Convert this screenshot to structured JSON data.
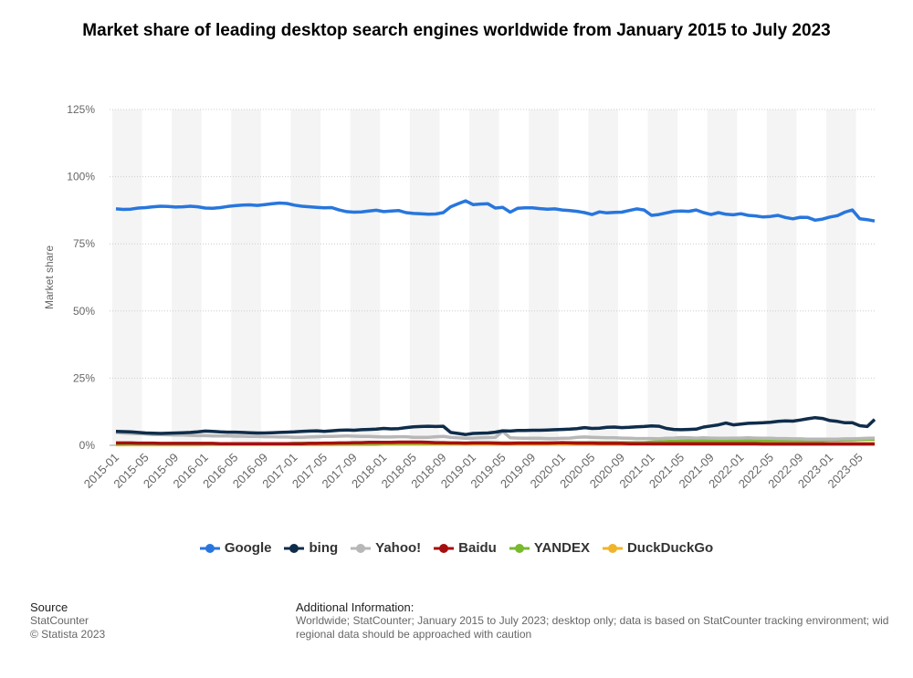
{
  "chart_data": {
    "type": "line",
    "title": "Market share of leading desktop search engines worldwide from January 2015 to July 2023",
    "y_label": "Market share",
    "ylim": [
      0,
      125
    ],
    "yticks": [
      {
        "value": 0,
        "label": "0%"
      },
      {
        "value": 25,
        "label": "25%"
      },
      {
        "value": 50,
        "label": "50%"
      },
      {
        "value": 75,
        "label": "75%"
      },
      {
        "value": 100,
        "label": "100%"
      },
      {
        "value": 125,
        "label": "125%"
      }
    ],
    "grid": true,
    "categories": [
      "2015-01",
      null,
      null,
      null,
      "2015-05",
      null,
      null,
      null,
      "2015-09",
      null,
      null,
      null,
      "2016-01",
      null,
      null,
      null,
      "2016-05",
      null,
      null,
      null,
      "2016-09",
      null,
      null,
      null,
      "2017-01",
      null,
      null,
      null,
      "2017-05",
      null,
      null,
      null,
      "2017-09",
      null,
      null,
      null,
      "2018-01",
      null,
      null,
      null,
      "2018-05",
      null,
      null,
      null,
      "2018-09",
      null,
      null,
      null,
      "2019-01",
      null,
      null,
      null,
      "2019-05",
      null,
      null,
      null,
      "2019-09",
      null,
      null,
      null,
      "2020-01",
      null,
      null,
      null,
      "2020-05",
      null,
      null,
      null,
      "2020-09",
      null,
      null,
      null,
      "2021-01",
      null,
      null,
      null,
      "2021-05",
      null,
      null,
      null,
      "2021-09",
      null,
      null,
      null,
      "2022-01",
      null,
      null,
      null,
      "2022-05",
      null,
      null,
      null,
      "2022-09",
      null,
      null,
      null,
      "2023-01",
      null,
      null,
      null,
      "2023-05",
      null,
      null
    ],
    "series": [
      {
        "name": "Google",
        "color": "#2876dd",
        "values": [
          88,
          87.8,
          87.9,
          88.3,
          88.5,
          88.8,
          89,
          88.9,
          88.7,
          88.8,
          89.0,
          88.8,
          88.3,
          88.2,
          88.5,
          88.9,
          89.2,
          89.4,
          89.5,
          89.3,
          89.6,
          89.9,
          90.2,
          90.0,
          89.4,
          89.0,
          88.8,
          88.6,
          88.4,
          88.5,
          87.6,
          87.0,
          86.8,
          86.9,
          87.2,
          87.5,
          87.0,
          87.2,
          87.4,
          86.6,
          86.3,
          86.2,
          86.0,
          86.1,
          86.6,
          88.8,
          89.9,
          91.0,
          89.6,
          89.8,
          89.9,
          88.3,
          88.6,
          86.8,
          88.2,
          88.4,
          88.4,
          88.1,
          87.9,
          88.0,
          87.6,
          87.4,
          87.1,
          86.6,
          85.9,
          86.9,
          86.5,
          86.7,
          86.8,
          87.4,
          88.0,
          87.6,
          85.6,
          85.9,
          86.5,
          87.1,
          87.2,
          87.1,
          87.6,
          86.6,
          85.9,
          86.6,
          86.0,
          85.8,
          86.2,
          85.6,
          85.4,
          85.0,
          85.2,
          85.6,
          84.8,
          84.3,
          84.9,
          84.8,
          83.8,
          84.2,
          85.0,
          85.5,
          86.8,
          87.6,
          84.3,
          84.0,
          83.5
        ]
      },
      {
        "name": "bing",
        "color": "#0f2d4b",
        "values": [
          5.2,
          5.1,
          5.0,
          4.8,
          4.6,
          4.5,
          4.4,
          4.5,
          4.6,
          4.7,
          4.8,
          5.0,
          5.3,
          5.2,
          5.0,
          4.9,
          4.9,
          4.8,
          4.7,
          4.6,
          4.6,
          4.7,
          4.8,
          4.9,
          5.0,
          5.2,
          5.3,
          5.4,
          5.2,
          5.4,
          5.6,
          5.7,
          5.6,
          5.8,
          5.9,
          6.0,
          6.3,
          6.1,
          6.2,
          6.6,
          6.9,
          7.0,
          7.1,
          7.0,
          7.1,
          4.8,
          4.4,
          4.0,
          4.4,
          4.5,
          4.6,
          4.9,
          5.4,
          5.3,
          5.5,
          5.5,
          5.6,
          5.6,
          5.7,
          5.8,
          5.9,
          6.0,
          6.2,
          6.6,
          6.3,
          6.4,
          6.7,
          6.8,
          6.6,
          6.7,
          6.9,
          7.0,
          7.2,
          7.1,
          6.3,
          5.9,
          5.8,
          5.9,
          6.0,
          6.8,
          7.2,
          7.6,
          8.3,
          7.6,
          7.9,
          8.2,
          8.3,
          8.4,
          8.6,
          8.9,
          9.1,
          9.0,
          9.4,
          9.9,
          10.3,
          10.0,
          9.2,
          8.9,
          8.4,
          8.4,
          7.3,
          7.0,
          9.6
        ]
      },
      {
        "name": "Yahoo!",
        "color": "#b7b7b7",
        "values": [
          4.8,
          4.6,
          4.4,
          4.3,
          4.2,
          4.0,
          4.0,
          3.9,
          3.8,
          3.8,
          3.7,
          3.6,
          3.6,
          3.5,
          3.5,
          3.5,
          3.4,
          3.4,
          3.3,
          3.3,
          3.2,
          3.2,
          3.1,
          3.1,
          3.0,
          3.0,
          3.1,
          3.2,
          3.3,
          3.3,
          3.4,
          3.5,
          3.4,
          3.3,
          3.3,
          3.2,
          3.1,
          3.1,
          3.2,
          3.2,
          3.0,
          3.0,
          3.0,
          3.2,
          3.3,
          3.0,
          2.8,
          2.6,
          2.7,
          2.8,
          2.9,
          3.0,
          5.2,
          2.8,
          2.7,
          2.6,
          2.6,
          2.6,
          2.5,
          2.5,
          2.6,
          2.7,
          3.0,
          3.1,
          3.0,
          2.9,
          2.8,
          2.8,
          2.7,
          2.6,
          2.5,
          2.5,
          2.5,
          2.4,
          2.6,
          2.7,
          2.9,
          2.8,
          2.7,
          2.8,
          2.7,
          2.6,
          2.6,
          2.7,
          2.7,
          2.8,
          2.7,
          2.6,
          2.6,
          2.5,
          2.5,
          2.4,
          2.4,
          2.3,
          2.3,
          2.3,
          2.3,
          2.3,
          2.4,
          2.4,
          2.5,
          2.6,
          2.7
        ]
      },
      {
        "name": "Baidu",
        "color": "#a60f0f",
        "values": [
          0.9,
          0.9,
          0.9,
          0.8,
          0.8,
          0.8,
          0.7,
          0.7,
          0.7,
          0.7,
          0.7,
          0.7,
          0.7,
          0.7,
          0.6,
          0.6,
          0.6,
          0.6,
          0.6,
          0.6,
          0.6,
          0.6,
          0.6,
          0.6,
          0.6,
          0.6,
          0.7,
          0.7,
          0.8,
          0.8,
          0.9,
          0.9,
          1.0,
          1.0,
          1.1,
          1.1,
          1.1,
          1.1,
          1.2,
          1.2,
          1.2,
          1.2,
          1.1,
          1.0,
          1.0,
          0.9,
          0.9,
          0.8,
          0.9,
          0.9,
          0.9,
          0.8,
          0.7,
          0.7,
          0.8,
          0.8,
          0.8,
          0.8,
          0.8,
          0.9,
          1.0,
          0.9,
          0.8,
          0.8,
          0.8,
          0.7,
          0.7,
          0.7,
          0.7,
          0.6,
          0.6,
          0.6,
          0.6,
          0.6,
          0.6,
          0.6,
          0.6,
          0.6,
          0.6,
          0.6,
          0.6,
          0.6,
          0.6,
          0.6,
          0.6,
          0.6,
          0.6,
          0.5,
          0.5,
          0.5,
          0.5,
          0.5,
          0.5,
          0.5,
          0.5,
          0.5,
          0.5,
          0.5,
          0.5,
          0.5,
          0.5,
          0.5,
          0.5
        ]
      },
      {
        "name": "YANDEX",
        "color": "#7ab830",
        "values": [
          0.5,
          0.5,
          0.6,
          0.6,
          0.6,
          0.6,
          0.6,
          0.6,
          0.6,
          0.6,
          0.6,
          0.6,
          0.6,
          0.6,
          0.6,
          0.6,
          0.6,
          0.6,
          0.6,
          0.6,
          0.6,
          0.6,
          0.6,
          0.6,
          0.7,
          0.7,
          0.7,
          0.7,
          0.7,
          0.7,
          0.7,
          0.7,
          0.7,
          0.7,
          0.7,
          0.7,
          0.8,
          0.8,
          0.8,
          0.8,
          0.8,
          0.8,
          0.8,
          0.8,
          0.8,
          0.8,
          0.8,
          0.8,
          0.9,
          0.9,
          0.9,
          0.9,
          0.9,
          0.9,
          0.9,
          0.9,
          0.9,
          0.9,
          0.9,
          0.9,
          1.0,
          1.0,
          1.0,
          1.0,
          1.0,
          1.0,
          1.0,
          1.0,
          1.0,
          1.0,
          1.0,
          1.0,
          1.2,
          1.3,
          1.4,
          1.5,
          1.6,
          1.7,
          1.8,
          1.8,
          1.8,
          1.8,
          1.8,
          1.8,
          1.8,
          1.8,
          1.8,
          1.8,
          1.8,
          1.8,
          1.8,
          1.8,
          1.8,
          1.8,
          1.8,
          1.8,
          1.9,
          1.9,
          2.0,
          2.0,
          2.1,
          2.2,
          2.2
        ]
      },
      {
        "name": "DuckDuckGo",
        "color": "#f0b429",
        "values": [
          0.2,
          0.2,
          0.2,
          0.2,
          0.2,
          0.2,
          0.2,
          0.2,
          0.2,
          0.2,
          0.2,
          0.2,
          0.3,
          0.3,
          0.3,
          0.3,
          0.3,
          0.3,
          0.3,
          0.3,
          0.3,
          0.3,
          0.3,
          0.3,
          0.3,
          0.3,
          0.3,
          0.3,
          0.3,
          0.3,
          0.3,
          0.3,
          0.3,
          0.3,
          0.3,
          0.3,
          0.4,
          0.4,
          0.4,
          0.4,
          0.4,
          0.4,
          0.4,
          0.4,
          0.4,
          0.4,
          0.4,
          0.4,
          0.4,
          0.4,
          0.4,
          0.4,
          0.4,
          0.4,
          0.4,
          0.4,
          0.4,
          0.4,
          0.4,
          0.4,
          0.5,
          0.5,
          0.5,
          0.5,
          0.5,
          0.5,
          0.5,
          0.5,
          0.5,
          0.5,
          0.5,
          0.5,
          0.6,
          0.6,
          0.6,
          0.6,
          0.6,
          0.6,
          0.6,
          0.6,
          0.6,
          0.6,
          0.6,
          0.6,
          0.6,
          0.6,
          0.6,
          0.6,
          0.6,
          0.6,
          0.6,
          0.6,
          0.6,
          0.6,
          0.6,
          0.6,
          0.6,
          0.6,
          0.6,
          0.6,
          0.6,
          0.6,
          0.6
        ]
      }
    ],
    "source_heading": "Source",
    "source_lines": [
      "StatCounter",
      "© Statista 2023"
    ],
    "info_heading": "Additional Information:",
    "info_lines": [
      "Worldwide; StatCounter; January 2015 to July 2023; desktop only; data is based on StatCounter tracking environment; wid",
      "regional data should be approached with caution"
    ]
  }
}
